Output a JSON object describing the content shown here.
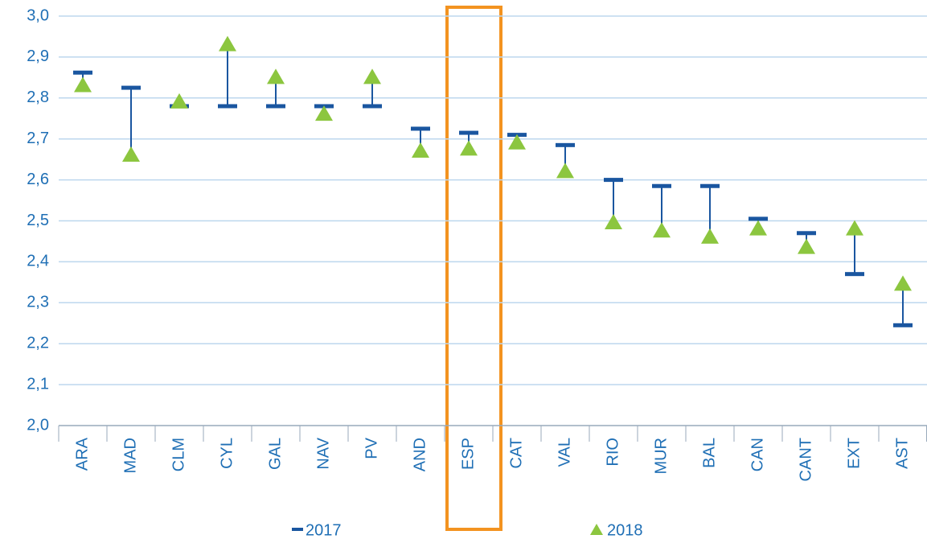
{
  "chart_data": {
    "type": "dumbbell",
    "categories": [
      "ARA",
      "MAD",
      "CLM",
      "CYL",
      "GAL",
      "NAV",
      "PV",
      "AND",
      "ESP",
      "CAT",
      "VAL",
      "RIO",
      "MUR",
      "BAL",
      "CAN",
      "CANT",
      "EXT",
      "AST"
    ],
    "series": [
      {
        "name": "2017",
        "color": "#1a56a0",
        "marker": "dash",
        "values": [
          2.862,
          2.825,
          2.78,
          2.78,
          2.78,
          2.78,
          2.78,
          2.725,
          2.715,
          2.71,
          2.685,
          2.6,
          2.585,
          2.585,
          2.505,
          2.47,
          2.37,
          2.245
        ]
      },
      {
        "name": "2018",
        "color": "#8cc63f",
        "marker": "triangle",
        "values": [
          2.83,
          2.66,
          2.79,
          2.93,
          2.85,
          2.76,
          2.85,
          2.67,
          2.675,
          2.69,
          2.62,
          2.495,
          2.475,
          2.46,
          2.48,
          2.435,
          2.48,
          2.345
        ]
      }
    ],
    "ylim": [
      2.0,
      3.0
    ],
    "yticks": [
      {
        "value": 2.0,
        "label": "2,0"
      },
      {
        "value": 2.1,
        "label": "2,1"
      },
      {
        "value": 2.2,
        "label": "2,2"
      },
      {
        "value": 2.3,
        "label": "2,3"
      },
      {
        "value": 2.4,
        "label": "2,4"
      },
      {
        "value": 2.5,
        "label": "2,5"
      },
      {
        "value": 2.6,
        "label": "2,6"
      },
      {
        "value": 2.7,
        "label": "2,7"
      },
      {
        "value": 2.8,
        "label": "2,8"
      },
      {
        "value": 2.9,
        "label": "2,9"
      },
      {
        "value": 3.0,
        "label": "3,0"
      }
    ],
    "grid": true
  }
}
